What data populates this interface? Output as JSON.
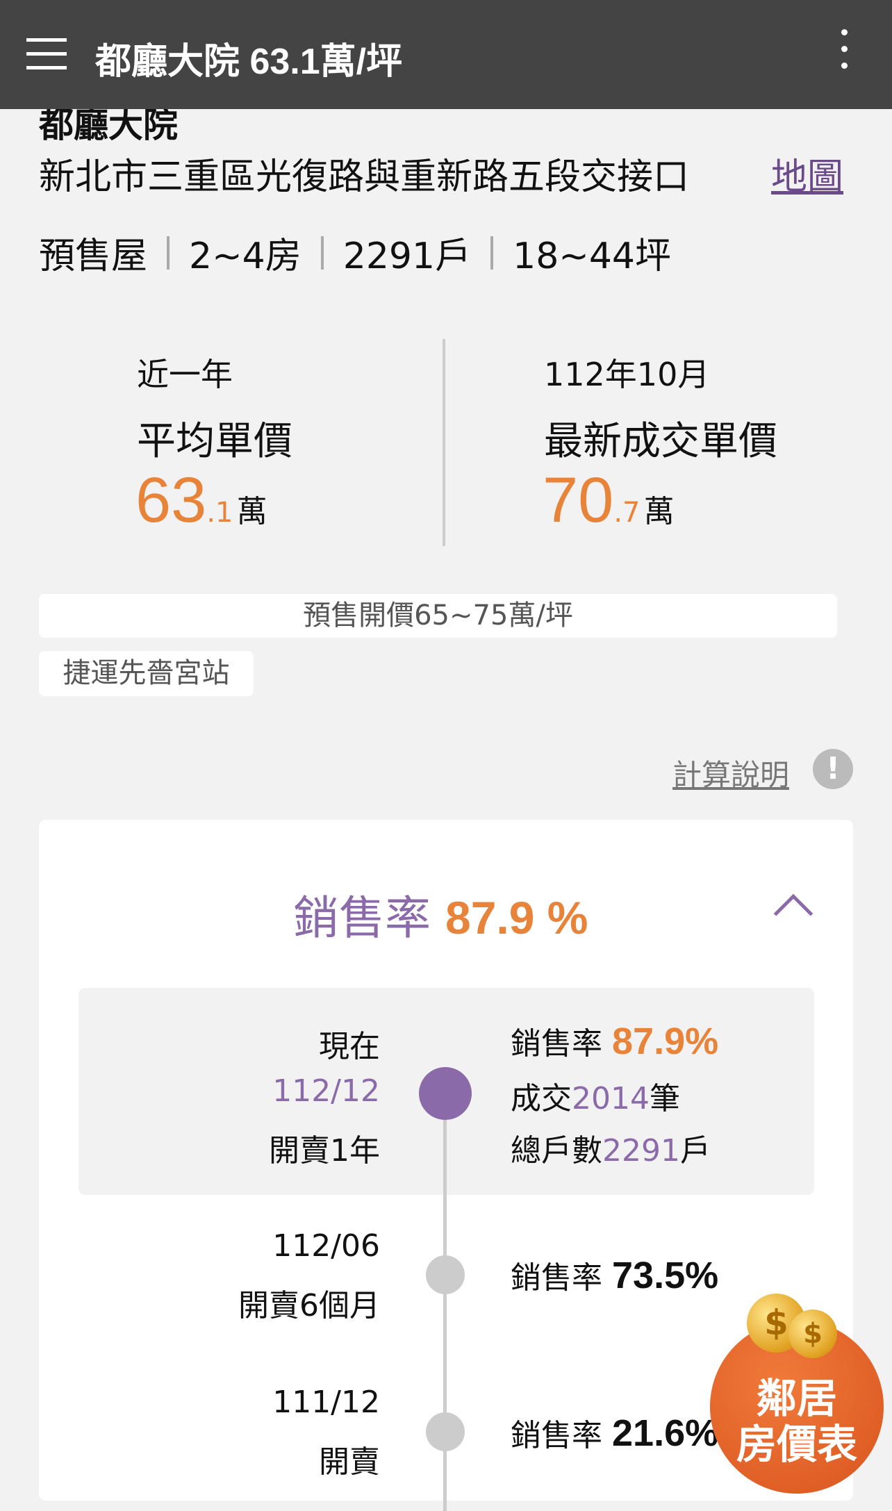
{
  "header": {
    "title": "都廳大院 63.1萬/坪",
    "menu_icon": "hamburger-icon",
    "more_icon": "more-vertical-icon"
  },
  "project": {
    "name": "都廳大院",
    "address": "新北市三重區光復路與重新路五段交接口",
    "map_link": "地圖",
    "tags": [
      "預售屋",
      "2~4房",
      "2291戶",
      "18~44坪"
    ]
  },
  "stats": {
    "avg": {
      "period": "近一年",
      "label": "平均單價",
      "int": "63",
      "dec": ".1",
      "unit": "萬"
    },
    "latest": {
      "period": "112年10月",
      "label": "最新成交單價",
      "int": "70",
      "dec": ".7",
      "unit": "萬"
    }
  },
  "presale_price": "預售開價65~75萬/坪",
  "station_tag": "捷運先嗇宮站",
  "calc_link": "計算說明",
  "calc_icon": "exclamation-icon",
  "sales": {
    "title_label": "銷售率",
    "title_value": "87.9 %",
    "collapse_icon": "chevron-up-icon",
    "timeline": [
      {
        "when": "現在",
        "date": "112/12",
        "age": "開賣1年",
        "rate_label": "銷售率",
        "rate": "87.9%",
        "deals_prefix": "成交",
        "deals": "2014",
        "deals_suffix": "筆",
        "units_prefix": "總戶數",
        "units": "2291",
        "units_suffix": "戶"
      },
      {
        "date": "112/06",
        "age": "開賣6個月",
        "rate_label": "銷售率",
        "rate": "73.5%"
      },
      {
        "date": "111/12",
        "age": "開賣",
        "rate_label": "銷售率",
        "rate": "21.6%"
      }
    ]
  },
  "floating_button": {
    "line1": "鄰居",
    "line2": "房價表",
    "icon": "coins-icon"
  },
  "colors": {
    "header": "#444444",
    "accent_orange": "#e8833a",
    "accent_purple": "#8a6aa8"
  }
}
